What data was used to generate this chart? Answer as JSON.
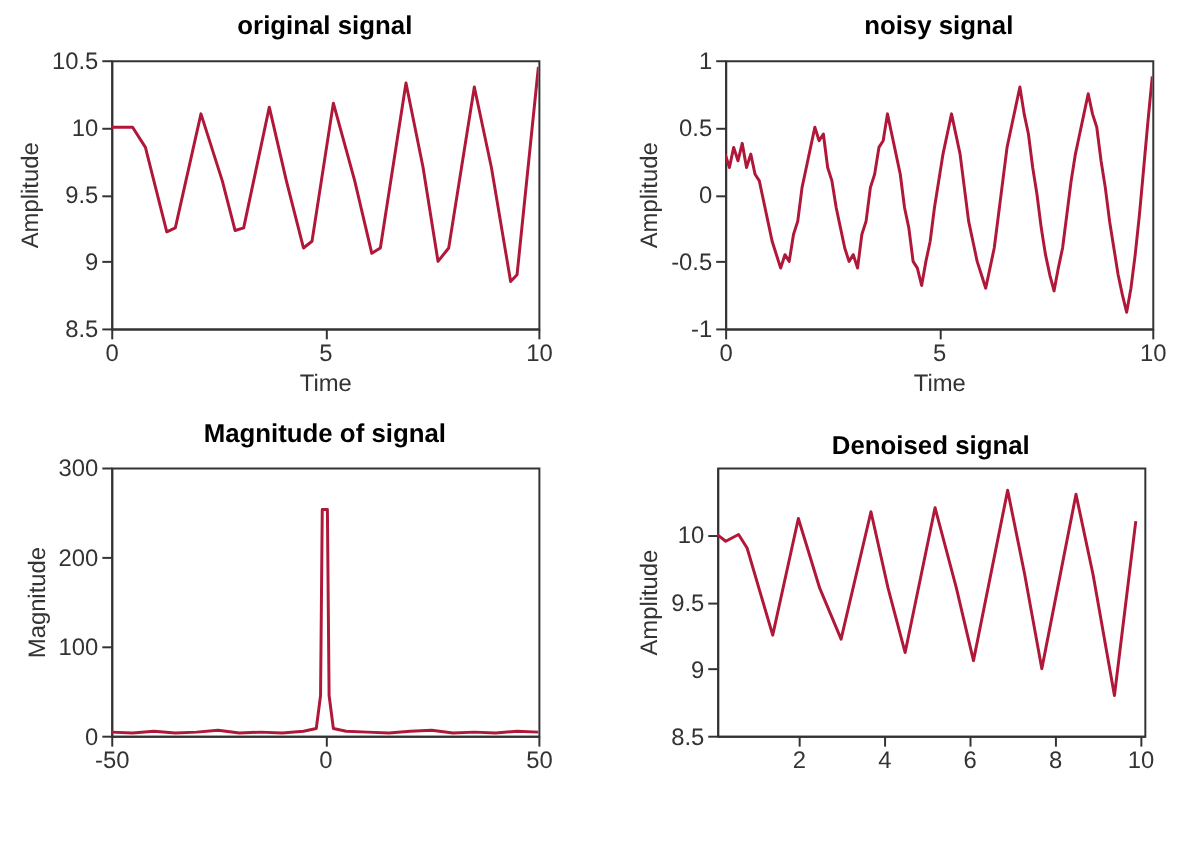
{
  "chart_data": [
    {
      "type": "line",
      "title": "original signal",
      "xlabel": "Time",
      "ylabel": "Amplitude",
      "xlim": [
        0,
        10
      ],
      "ylim": [
        8.5,
        10.5
      ],
      "xticks": [
        0,
        5,
        10
      ],
      "yticks": [
        8.5,
        9,
        9.5,
        10,
        10.5
      ],
      "grid": false,
      "x": [
        0,
        0.5,
        0.8,
        1.3,
        1.5,
        2.1,
        2.6,
        2.9,
        3.1,
        3.7,
        4.1,
        4.5,
        4.7,
        5.2,
        5.7,
        6.1,
        6.3,
        6.9,
        7.3,
        7.65,
        7.9,
        8.5,
        8.9,
        9.35,
        9.5,
        10
      ],
      "series": [
        {
          "color": "#b0183a",
          "values": [
            10,
            10,
            9.85,
            9.22,
            9.25,
            10.1,
            9.6,
            9.23,
            9.25,
            10.15,
            9.6,
            9.1,
            9.15,
            10.18,
            9.6,
            9.06,
            9.1,
            10.33,
            9.7,
            9.0,
            9.1,
            10.3,
            9.7,
            8.85,
            8.9,
            10.45
          ]
        }
      ]
    },
    {
      "type": "line",
      "title": "noisy signal",
      "xlabel": "Time",
      "ylabel": "Amplitude",
      "xlim": [
        0,
        10
      ],
      "ylim": [
        -1,
        1
      ],
      "xticks": [
        0,
        5,
        10
      ],
      "yticks": [
        -1,
        -0.5,
        0,
        0.5,
        1
      ],
      "grid": false,
      "x": [
        0,
        0.1,
        0.2,
        0.3,
        0.4,
        0.5,
        0.6,
        0.7,
        0.8,
        0.9,
        1,
        1.1,
        1.2,
        1.3,
        1.4,
        1.5,
        1.6,
        1.7,
        1.8,
        1.9,
        2,
        2.1,
        2.2,
        2.3,
        2.4,
        2.5,
        2.6,
        2.7,
        2.8,
        2.9,
        3,
        3.1,
        3.2,
        3.3,
        3.4,
        3.5,
        3.6,
        3.7,
        3.8,
        3.9,
        4,
        4.1,
        4.2,
        4.3,
        4.4,
        4.5,
        4.6,
        4.7,
        4.8,
        4.9,
        5,
        5.1,
        5.2,
        5.3,
        5.4,
        5.5,
        5.6,
        5.7,
        5.8,
        5.9,
        6,
        6.1,
        6.2,
        6.3,
        6.4,
        6.5,
        6.6,
        6.7,
        6.8,
        6.9,
        7,
        7.1,
        7.2,
        7.3,
        7.4,
        7.5,
        7.6,
        7.7,
        7.8,
        7.9,
        8,
        8.1,
        8.2,
        8.3,
        8.4,
        8.5,
        8.6,
        8.7,
        8.8,
        8.9,
        9,
        9.1,
        9.2,
        9.3,
        9.4,
        9.5,
        9.6,
        9.7,
        9.8,
        9.9,
        10
      ],
      "series": [
        {
          "color": "#b0183a",
          "values": [
            0.3,
            0.2,
            0.35,
            0.25,
            0.38,
            0.2,
            0.3,
            0.15,
            0.1,
            -0.05,
            -0.2,
            -0.35,
            -0.45,
            -0.55,
            -0.45,
            -0.5,
            -0.3,
            -0.2,
            0.05,
            0.2,
            0.35,
            0.5,
            0.4,
            0.45,
            0.2,
            0.1,
            -0.1,
            -0.25,
            -0.4,
            -0.5,
            -0.45,
            -0.55,
            -0.3,
            -0.2,
            0.05,
            0.15,
            0.35,
            0.4,
            0.6,
            0.45,
            0.3,
            0.15,
            -0.1,
            -0.25,
            -0.5,
            -0.55,
            -0.68,
            -0.5,
            -0.35,
            -0.1,
            0.1,
            0.3,
            0.45,
            0.6,
            0.45,
            0.3,
            0.05,
            -0.2,
            -0.35,
            -0.5,
            -0.6,
            -0.7,
            -0.55,
            -0.4,
            -0.15,
            0.1,
            0.35,
            0.5,
            0.65,
            0.8,
            0.6,
            0.45,
            0.2,
            0,
            -0.25,
            -0.45,
            -0.6,
            -0.72,
            -0.55,
            -0.4,
            -0.15,
            0.1,
            0.3,
            0.45,
            0.6,
            0.75,
            0.6,
            0.5,
            0.25,
            0.05,
            -0.2,
            -0.4,
            -0.6,
            -0.75,
            -0.88,
            -0.7,
            -0.45,
            -0.15,
            0.2,
            0.55,
            0.88
          ]
        }
      ]
    },
    {
      "type": "line",
      "title": "Magnitude of  signal",
      "ylabel": "Magnitude",
      "xlim": [
        -50,
        50
      ],
      "ylim": [
        0,
        300
      ],
      "xticks": [
        -50,
        0,
        50
      ],
      "yticks": [
        0,
        100,
        200,
        300
      ],
      "grid": false,
      "x": [
        -50,
        -45,
        -40,
        -35,
        -30,
        -25,
        -20,
        -15,
        -10,
        -5,
        -2,
        -1,
        -0.6,
        0.6,
        1,
        2,
        5,
        10,
        15,
        20,
        25,
        30,
        35,
        40,
        45,
        50
      ],
      "series": [
        {
          "color": "#b0183a",
          "values": [
            4,
            3,
            5,
            3,
            4,
            6,
            3,
            4,
            3,
            5,
            8,
            45,
            253,
            253,
            45,
            8,
            5,
            4,
            3,
            5,
            6,
            3,
            4,
            3,
            5,
            4
          ]
        }
      ]
    },
    {
      "type": "line",
      "title": "Denoised signal",
      "ylabel": "Amplitude",
      "xlim": [
        0.1,
        10.1
      ],
      "ylim": [
        8.5,
        10.5
      ],
      "xticks": [
        2,
        4,
        6,
        8,
        10
      ],
      "yticks": [
        8.5,
        9,
        9.5,
        10
      ],
      "grid": false,
      "x": [
        0.1,
        0.3,
        0.6,
        0.8,
        1.4,
        2.0,
        2.5,
        3.0,
        3.7,
        4.1,
        4.5,
        5.2,
        5.7,
        6.1,
        6.9,
        7.3,
        7.7,
        8.5,
        8.9,
        9.4,
        9.9
      ],
      "series": [
        {
          "color": "#b0183a",
          "values": [
            10,
            9.95,
            10,
            9.9,
            9.25,
            10.12,
            9.6,
            9.22,
            10.17,
            9.6,
            9.12,
            10.2,
            9.6,
            9.06,
            10.33,
            9.7,
            9.0,
            10.3,
            9.7,
            8.8,
            10.1
          ]
        }
      ]
    }
  ]
}
